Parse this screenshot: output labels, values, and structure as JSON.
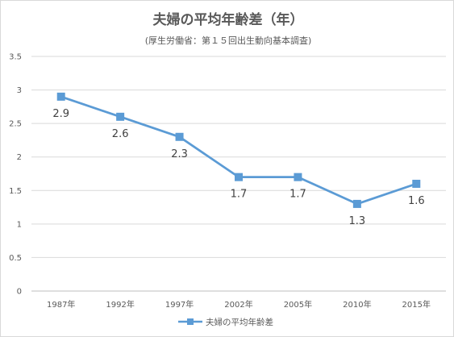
{
  "chart_data": {
    "type": "line",
    "title": "夫婦の平均年齢差（年）",
    "subtitle": "(厚生労働省：第１５回出生動向基本調査)",
    "categories": [
      "1987年",
      "1992年",
      "1997年",
      "2002年",
      "2005年",
      "2010年",
      "2015年"
    ],
    "series": [
      {
        "name": "夫婦の平均年齢差",
        "values": [
          2.9,
          2.6,
          2.3,
          1.7,
          1.7,
          1.3,
          1.6
        ],
        "labels": [
          "2.9",
          "2.6",
          "2.3",
          "1.7",
          "1.7",
          "1.3",
          "1.6"
        ]
      }
    ],
    "ylim": [
      0,
      3.5
    ],
    "yticks": [
      "0",
      "0.5",
      "1",
      "1.5",
      "2",
      "2.5",
      "3",
      "3.5"
    ],
    "grid": true,
    "legend": "bottom",
    "color": "#5b9bd5"
  }
}
